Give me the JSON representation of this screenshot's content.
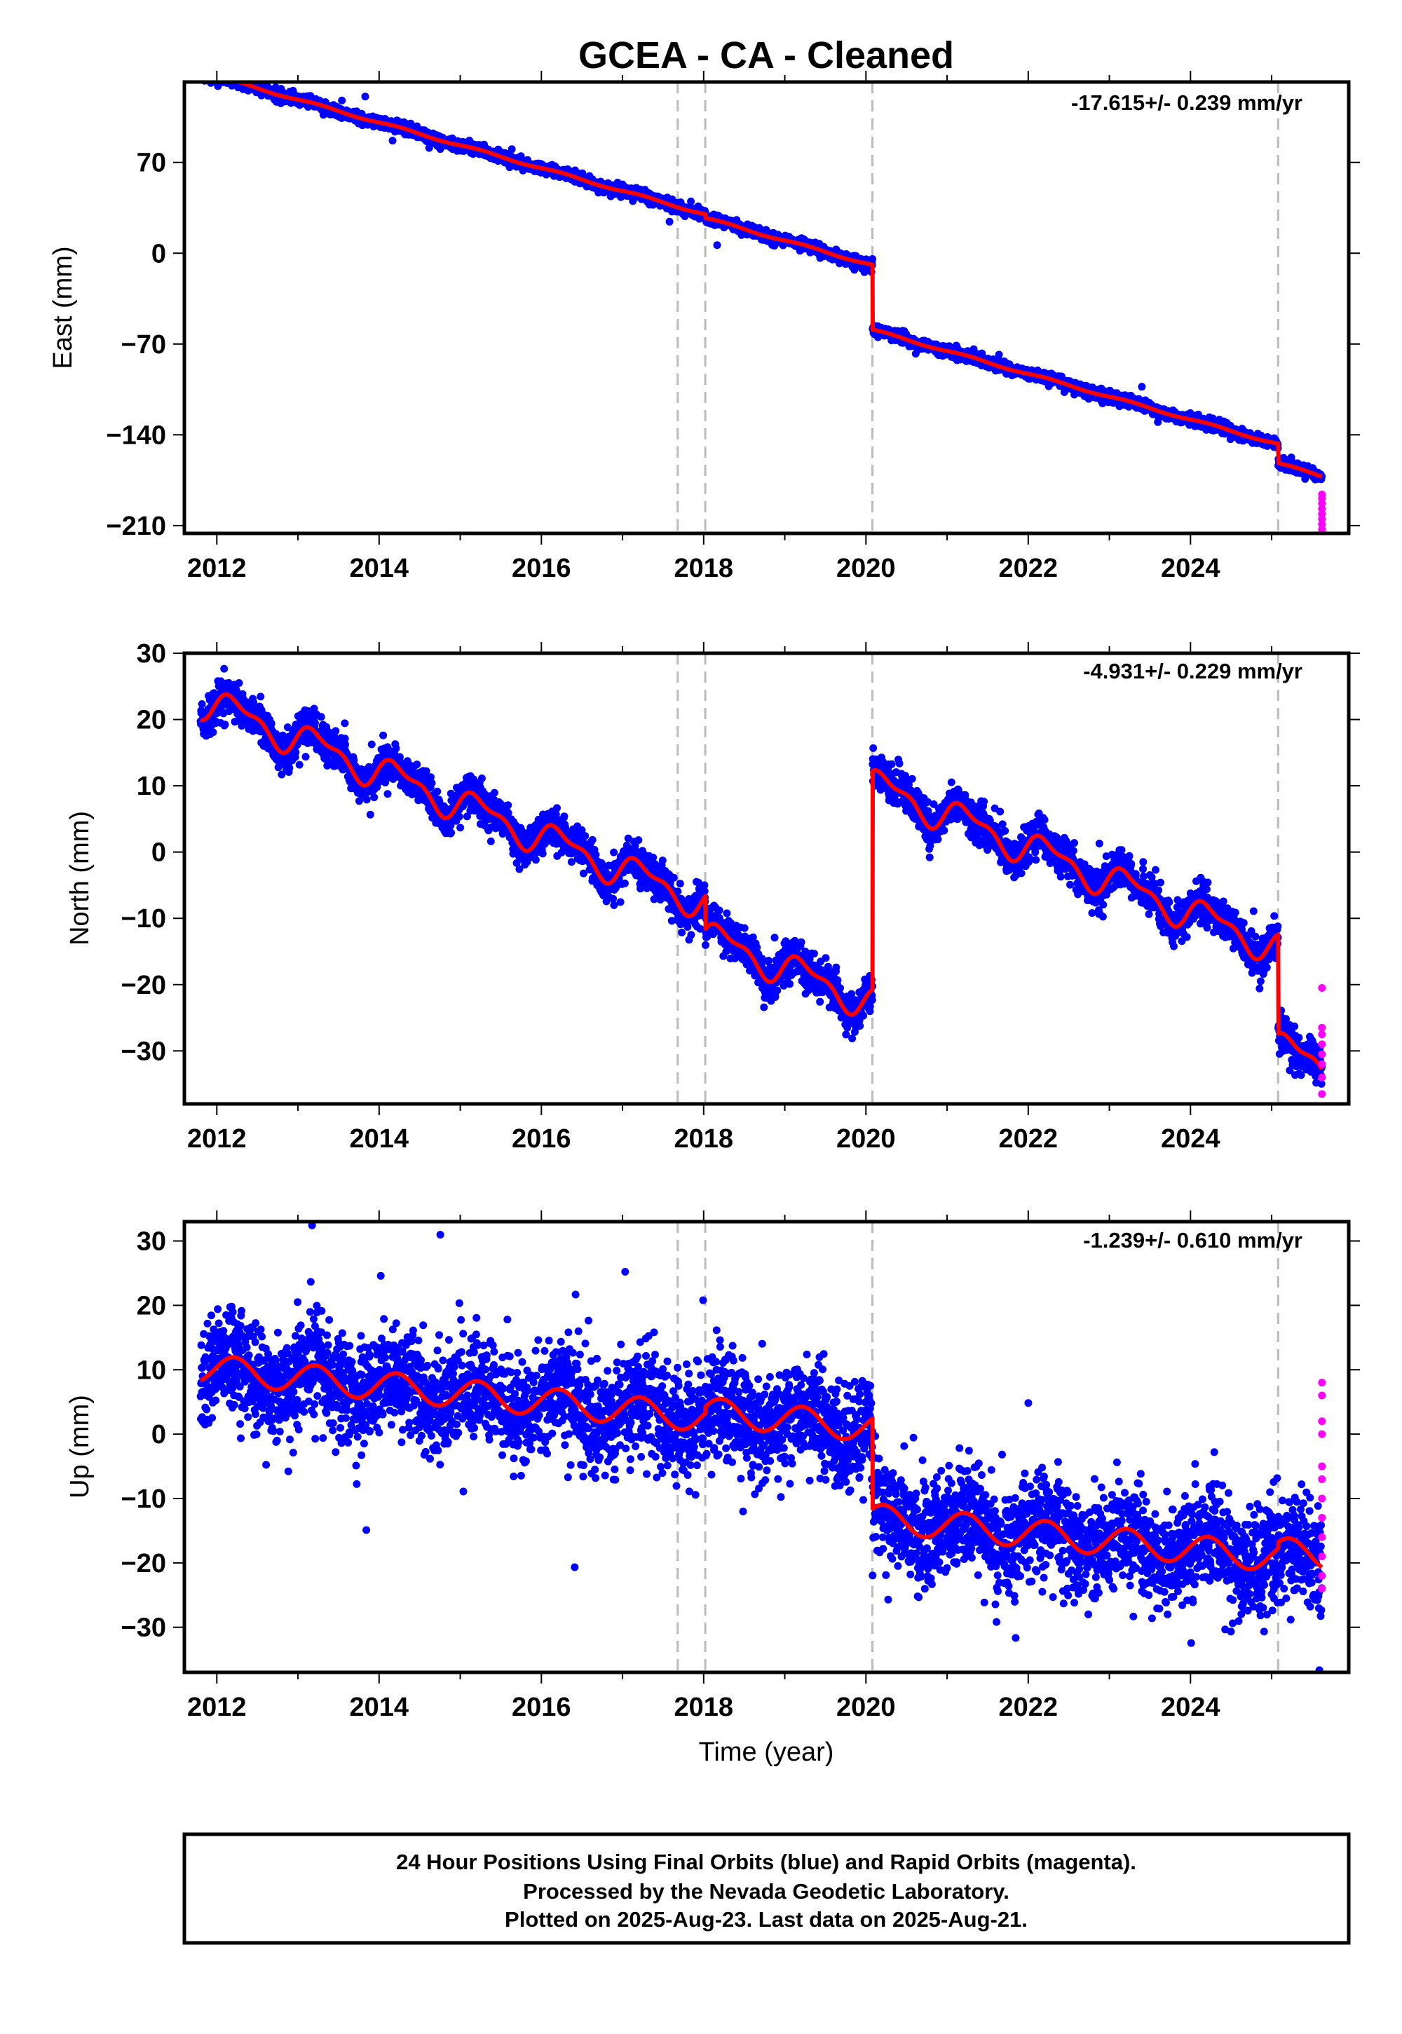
{
  "title": "GCEA  - CA - Cleaned",
  "colors": {
    "final_points": "#0000ff",
    "rapid_points": "#ff00ff",
    "model_line": "#ff0000",
    "event_lines": "#bbbbbb"
  },
  "chart_data": [
    {
      "type": "scatter",
      "component": "east",
      "ylabel": "East (mm)",
      "xlabel": "",
      "xlim": [
        2011.6,
        2025.95
      ],
      "ylim": [
        -216,
        132
      ],
      "xticks": [
        2012,
        2014,
        2016,
        2018,
        2020,
        2022,
        2024
      ],
      "xtick_labels": [
        "2012",
        "2014",
        "2016",
        "2018",
        "2020",
        "2022",
        "2024"
      ],
      "yticks": [
        70,
        0,
        -70,
        -140,
        -210
      ],
      "ytick_labels": [
        "70",
        "0",
        "−70",
        "−140",
        "−210"
      ],
      "rate_label": "-17.615+/- 0.239 mm/yr",
      "events": [
        2017.68,
        2018.02,
        2020.08,
        2025.08
      ],
      "model": {
        "start": 2011.8,
        "end": 2025.62,
        "rate": -17.6,
        "intercept": 136,
        "seasonal": [
          {
            "amp": 0.8,
            "phase": 0
          }
        ],
        "offsets": [
          {
            "t": 2018.02,
            "d": -3
          },
          {
            "t": 2020.08,
            "d": -50
          },
          {
            "t": 2025.08,
            "d": -15
          }
        ]
      },
      "noise": 2.0,
      "rapid": {
        "x": 2025.62,
        "y": [
          -186,
          -189,
          -193,
          -197,
          -201,
          -205,
          -209,
          -213
        ]
      }
    },
    {
      "type": "scatter",
      "component": "north",
      "ylabel": "North (mm)",
      "xlabel": "",
      "xlim": [
        2011.6,
        2025.95
      ],
      "ylim": [
        -38,
        30
      ],
      "xticks": [
        2012,
        2014,
        2016,
        2018,
        2020,
        2022,
        2024
      ],
      "xtick_labels": [
        "2012",
        "2014",
        "2016",
        "2018",
        "2020",
        "2022",
        "2024"
      ],
      "yticks": [
        30,
        20,
        10,
        0,
        -10,
        -20,
        -30
      ],
      "ytick_labels": [
        "30",
        "20",
        "10",
        "0",
        "−10",
        "−20",
        "−30"
      ],
      "rate_label": "-4.931+/- 0.229 mm/yr",
      "events": [
        2017.68,
        2018.02,
        2020.08,
        2025.08
      ],
      "model": {
        "start": 2011.8,
        "end": 2025.62,
        "rate": -4.93,
        "intercept": 22,
        "seasonal": [
          {
            "amp": 2.2,
            "phase": 0
          },
          {
            "amp": 1.0,
            "phase": 0.6
          }
        ],
        "offsets": [
          {
            "t": 2018.02,
            "d": -5
          },
          {
            "t": 2020.08,
            "d": 33
          },
          {
            "t": 2025.08,
            "d": -15
          }
        ]
      },
      "noise": 1.4,
      "rapid": {
        "x": 2025.62,
        "y": [
          -20.5,
          -26.5,
          -27.5,
          -29,
          -30.5,
          -32,
          -34,
          -36.5
        ]
      }
    },
    {
      "type": "scatter",
      "component": "up",
      "ylabel": "Up (mm)",
      "xlabel": "Time (year)",
      "xlim": [
        2011.6,
        2025.95
      ],
      "ylim": [
        -37,
        33
      ],
      "xticks": [
        2012,
        2014,
        2016,
        2018,
        2020,
        2022,
        2024
      ],
      "xtick_labels": [
        "2012",
        "2014",
        "2016",
        "2018",
        "2020",
        "2022",
        "2024"
      ],
      "yticks": [
        30,
        20,
        10,
        0,
        -10,
        -20,
        -30
      ],
      "ytick_labels": [
        "30",
        "20",
        "10",
        "0",
        "−10",
        "−20",
        "−30"
      ],
      "rate_label": "-1.239+/- 0.610 mm/yr",
      "events": [
        2017.68,
        2018.02,
        2020.08,
        2025.08
      ],
      "model": {
        "start": 2011.8,
        "end": 2025.62,
        "rate": -1.24,
        "intercept": 10,
        "seasonal": [
          {
            "amp": 2.2,
            "phase": 0.2
          }
        ],
        "offsets": [
          {
            "t": 2018.02,
            "d": 1
          },
          {
            "t": 2020.08,
            "d": -14
          },
          {
            "t": 2025.08,
            "d": 1
          }
        ]
      },
      "noise": 4.0,
      "rapid": {
        "x": 2025.62,
        "y": [
          8,
          6,
          2,
          0,
          -5,
          -7,
          -10,
          -13,
          -16,
          -19,
          -22,
          -24
        ]
      }
    }
  ],
  "footer": {
    "line1": "24 Hour Positions Using Final Orbits (blue) and Rapid Orbits (magenta).",
    "line2": "Processed by the Nevada Geodetic Laboratory.",
    "line3": "Plotted on 2025-Aug-23. Last data on 2025-Aug-21."
  }
}
